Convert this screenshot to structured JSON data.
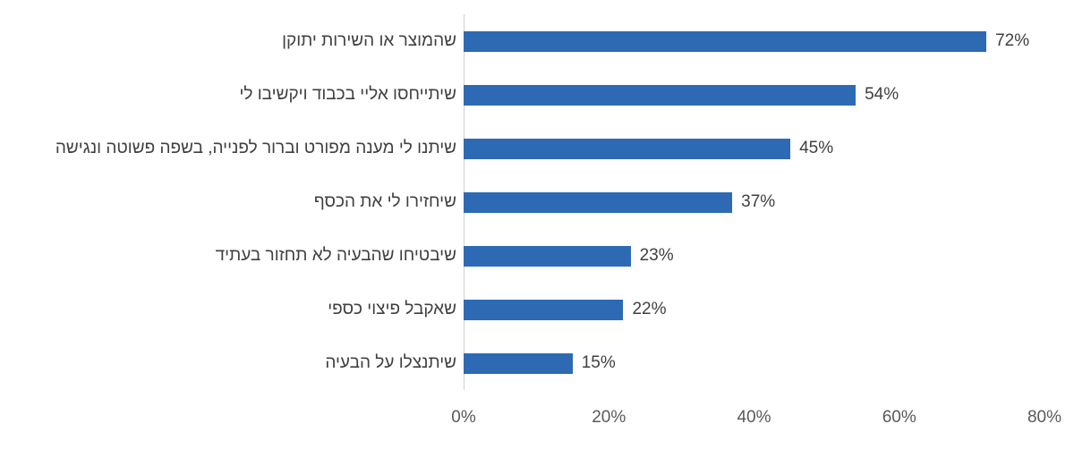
{
  "chart_data": {
    "type": "bar",
    "orientation": "horizontal",
    "categories": [
      "שהמוצר או השירות יתוקן",
      "שיתייחסו אליי בכבוד ויקשיבו לי",
      "שיתנו לי מענה מפורט וברור לפנייה, בשפה פשוטה ונגישה",
      "שיחזירו לי את הכסף",
      "שיבטיחו שהבעיה לא תחזור בעתיד",
      "שאקבל פיצוי כספי",
      "שיתנצלו על הבעיה"
    ],
    "values": [
      72,
      54,
      45,
      37,
      23,
      22,
      15
    ],
    "data_labels": [
      "72%",
      "54%",
      "45%",
      "37%",
      "23%",
      "22%",
      "15%"
    ],
    "xlim": [
      0,
      80
    ],
    "x_ticks": [
      "0%",
      "20%",
      "40%",
      "60%",
      "80%"
    ],
    "grid": false,
    "color": "#2E6AB3",
    "title": "",
    "xlabel": "",
    "ylabel": ""
  }
}
